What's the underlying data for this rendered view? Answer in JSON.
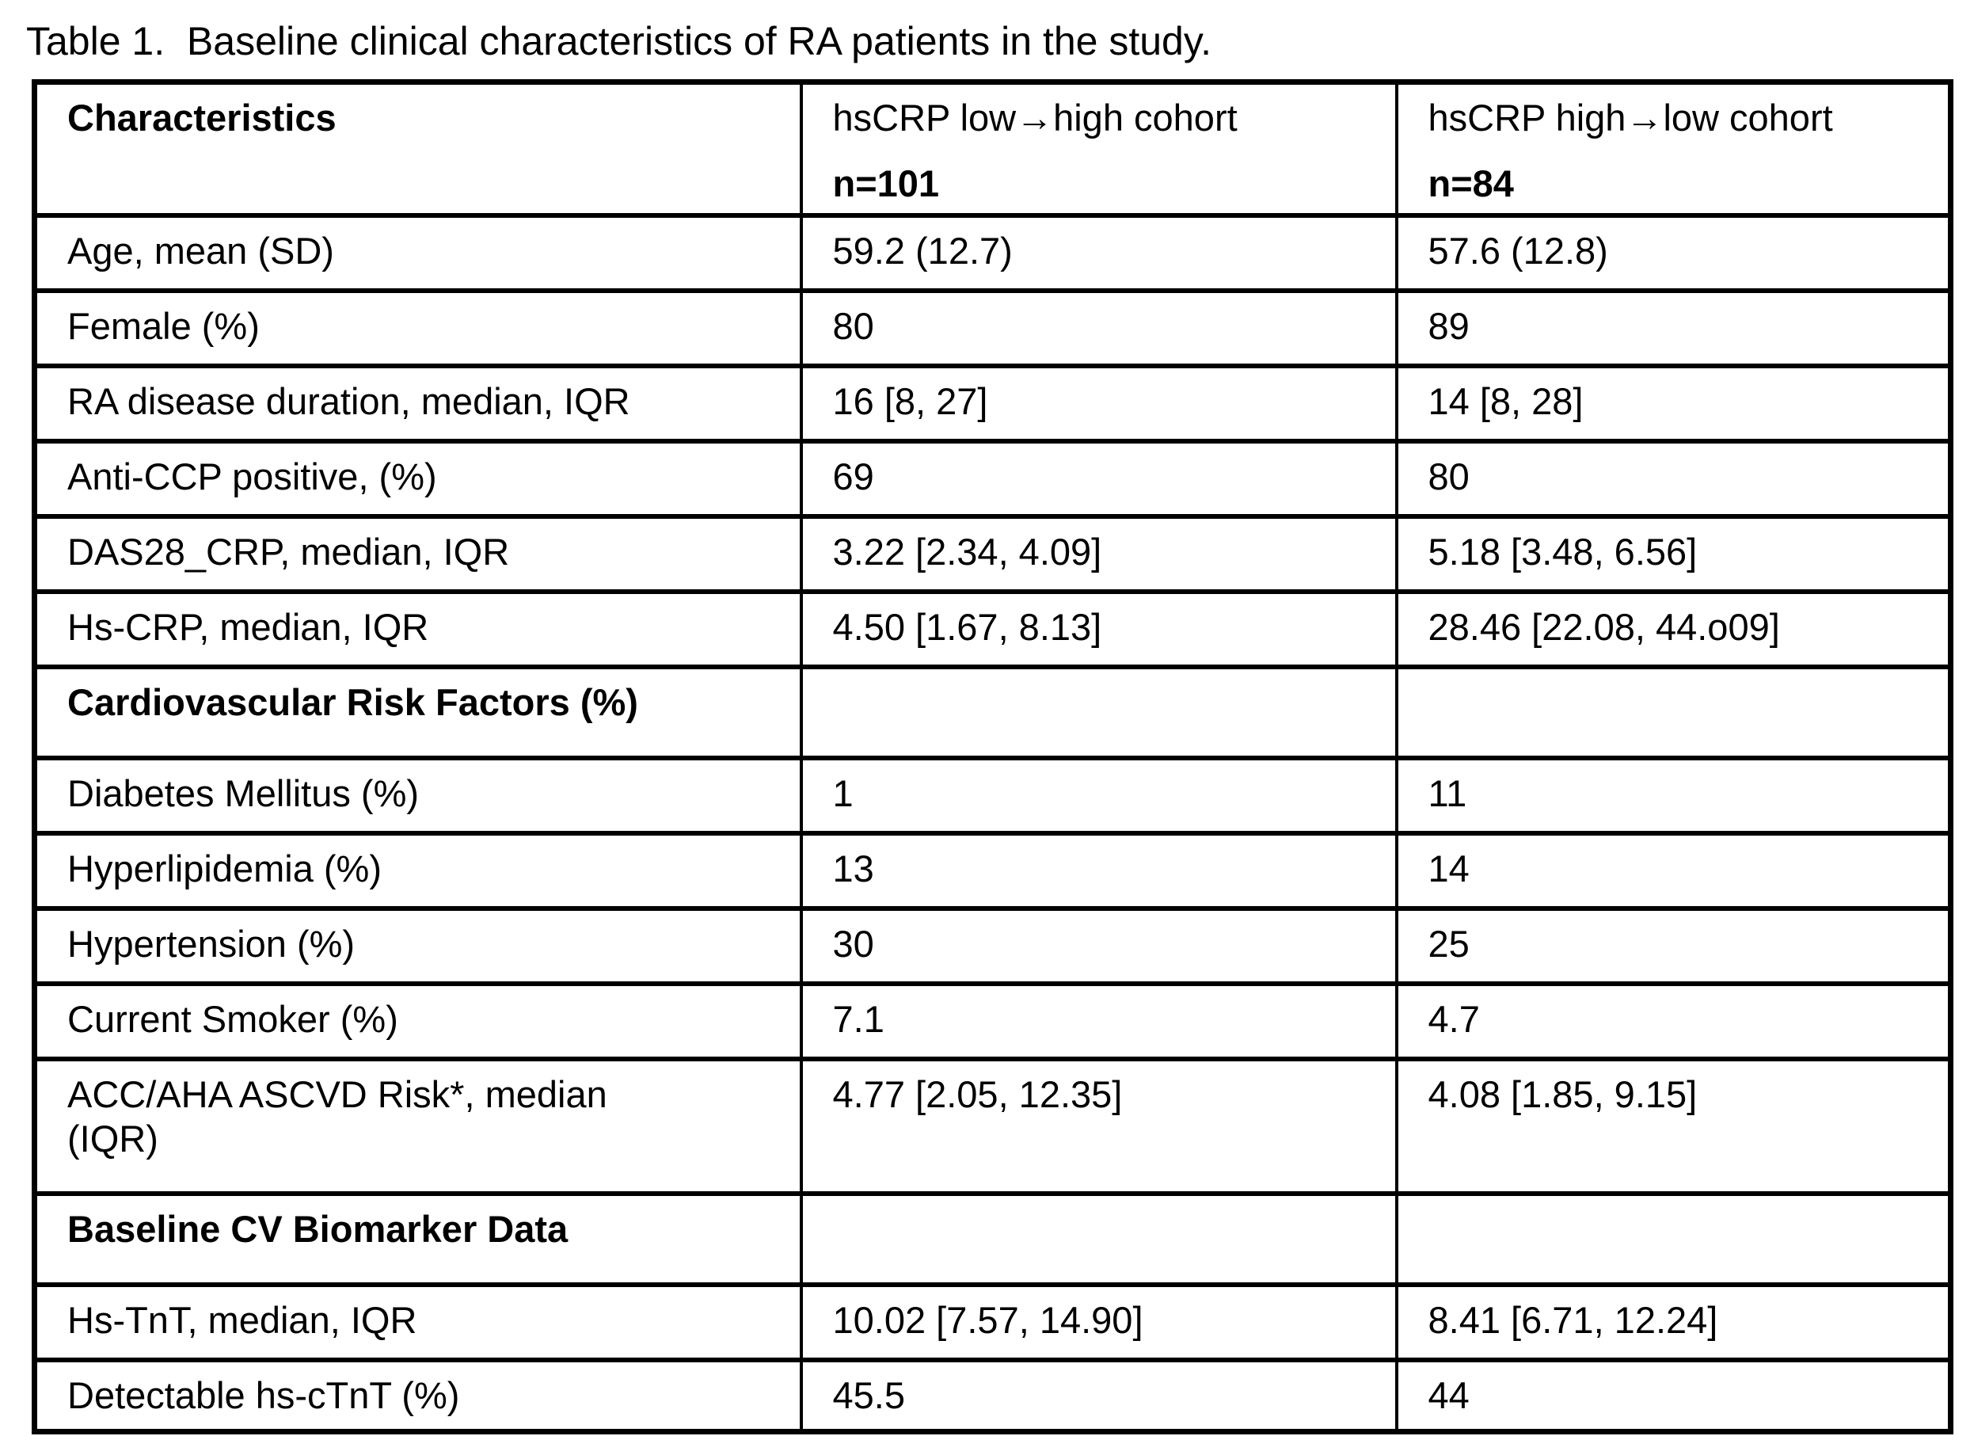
{
  "page": {
    "title": "Table 1.  Baseline clinical characteristics of RA patients in the study."
  },
  "table": {
    "header": {
      "col0": "Characteristics",
      "col1_line1": "hsCRP low→high cohort",
      "col1_line2": "n=101",
      "col2_line1": "hsCRP high→low cohort",
      "col2_line2": "n=84"
    },
    "rows": [
      {
        "label": "Age, mean (SD)",
        "v1": "59.2 (12.7)",
        "v2": "57.6 (12.8)"
      },
      {
        "label": "Female (%)",
        "v1": "80",
        "v2": "89"
      },
      {
        "label": "RA disease duration, median, IQR",
        "v1": "16 [8, 27]",
        "v2": "14 [8, 28]"
      },
      {
        "label": "Anti-CCP positive, (%)",
        "v1": "69",
        "v2": "80"
      },
      {
        "label": "DAS28_CRP, median, IQR",
        "v1": "3.22 [2.34, 4.09]",
        "v2": "5.18 [3.48, 6.56]"
      },
      {
        "label": "Hs-CRP, median, IQR",
        "v1": "4.50 [1.67, 8.13]",
        "v2": "28.46 [22.08, 44.o09]"
      },
      {
        "label": "Cardiovascular Risk Factors (%)",
        "v1": "",
        "v2": ""
      },
      {
        "label": "Diabetes Mellitus (%)",
        "v1": "1",
        "v2": "11"
      },
      {
        "label": "Hyperlipidemia (%)",
        "v1": "13",
        "v2": "14"
      },
      {
        "label": "Hypertension (%)",
        "v1": "30",
        "v2": "25"
      },
      {
        "label": "Current Smoker (%)",
        "v1": "7.1",
        "v2": "4.7"
      },
      {
        "label": "ACC/AHA ASCVD Risk*, median",
        "label2": "(IQR)",
        "v1": "4.77 [2.05, 12.35]",
        "v2": "4.08 [1.85, 9.15]"
      },
      {
        "label": "Baseline CV Biomarker Data",
        "v1": "",
        "v2": ""
      },
      {
        "label": "Hs-TnT, median, IQR",
        "v1": "10.02 [7.57, 14.90]",
        "v2": "8.41 [6.71, 12.24]"
      },
      {
        "label": "Detectable hs-cTnT (%)",
        "v1": "45.5",
        "v2": "44"
      }
    ]
  }
}
